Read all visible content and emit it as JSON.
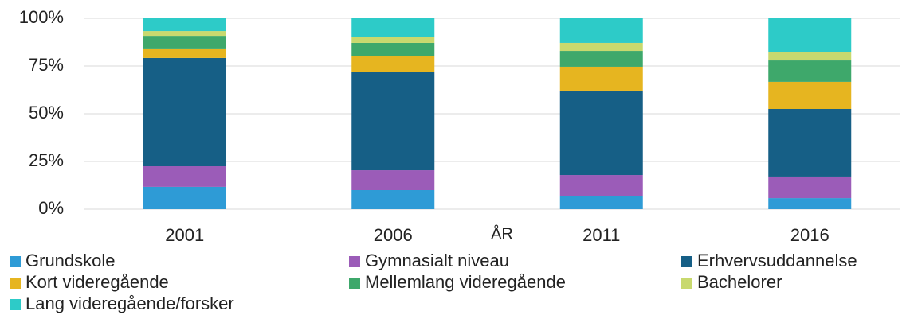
{
  "chart_data": {
    "type": "stacked_bar",
    "x_label": "ÅR",
    "categories": [
      "2001",
      "2006",
      "2011",
      "2016"
    ],
    "series": [
      {
        "name": "Grundskole",
        "color": "#2e9bd6",
        "values": [
          11.7,
          10,
          7,
          5.8
        ]
      },
      {
        "name": "Gymnasialt niveau",
        "color": "#9b5cb8",
        "values": [
          10.8,
          10.4,
          10.9,
          11.3
        ]
      },
      {
        "name": "Erhvervsuddannelse",
        "color": "#165f86",
        "values": [
          56.7,
          51.3,
          44.2,
          35.4
        ]
      },
      {
        "name": "Kort videregående",
        "color": "#e6b520",
        "values": [
          5,
          8.3,
          12.5,
          14.2
        ]
      },
      {
        "name": "Mellemlang videregående",
        "color": "#3ea86b",
        "values": [
          6.6,
          7.1,
          8.3,
          11.2
        ]
      },
      {
        "name": "Bachelorer",
        "color": "#c8d96e",
        "values": [
          2.5,
          3.3,
          4.2,
          4.6
        ]
      },
      {
        "name": "Lang videregående/forsker",
        "color": "#2dcbc8",
        "values": [
          6.7,
          9.6,
          12.9,
          17.5
        ]
      }
    ],
    "ylim": [
      0,
      100
    ],
    "yticks": [
      {
        "value": 0,
        "label": "0%"
      },
      {
        "value": 25,
        "label": "25%"
      },
      {
        "value": 50,
        "label": "50%"
      },
      {
        "value": 75,
        "label": "75%"
      },
      {
        "value": 100,
        "label": "100%"
      }
    ],
    "grid": true,
    "legend": "bottom"
  }
}
